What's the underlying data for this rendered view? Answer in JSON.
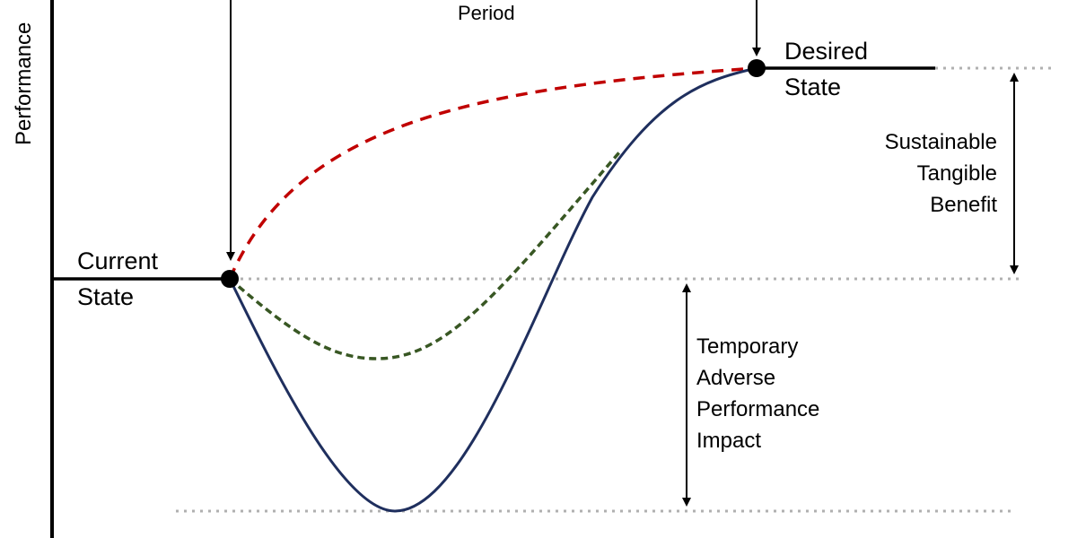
{
  "axis": {
    "y_label": "Performance"
  },
  "labels": {
    "period": "Period",
    "current_state": [
      "Current",
      "State"
    ],
    "desired_state": [
      "Desired",
      "State"
    ],
    "sustainable_benefit": [
      "Sustainable",
      "Tangible",
      "Benefit"
    ],
    "adverse_impact": [
      "Temporary",
      "Adverse",
      "Performance",
      "Impact"
    ]
  },
  "colors": {
    "ideal_curve": "#c00000",
    "moderate_curve": "#385723",
    "actual_curve": "#1f2f5e",
    "reference_line": "#b0b0b0",
    "ink": "#000000"
  }
}
